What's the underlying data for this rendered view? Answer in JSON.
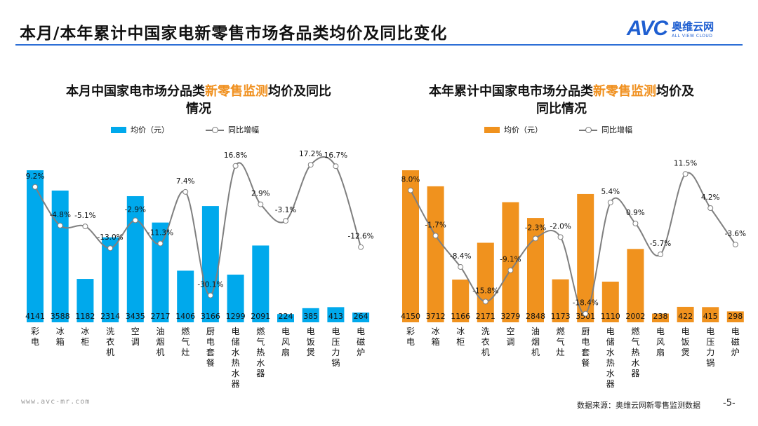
{
  "header": {
    "title": "本月/本年累计中国家电新零售市场各品类均价及同比变化"
  },
  "logo": {
    "mark": "AVC",
    "cn": "奥维云网",
    "en": "ALL VIEW CLOUD"
  },
  "footer": {
    "url": "www.avc-mr.com",
    "source": "数据来源：奥维云网新零售监测数据",
    "page": "-5-"
  },
  "colors": {
    "bar_left": "#00a9ec",
    "bar_right": "#f0921e",
    "line": "#7f7f7f",
    "highlight": "#f0901e"
  },
  "chart_data": [
    {
      "type": "bar+line",
      "title_parts": {
        "prefix": "本月中国家电市场分品类",
        "highlight": "新零售监测",
        "suffix": "均价及同比情况"
      },
      "categories": [
        "彩电",
        "冰箱",
        "冰柜",
        "洗衣机",
        "空调",
        "油烟机",
        "燃气灶",
        "厨电套餐",
        "电储水热水器",
        "燃气热水器",
        "电风扇",
        "电饭煲",
        "电压力锅",
        "电磁炉"
      ],
      "series": [
        {
          "name": "均价（元）",
          "type": "bar",
          "values": [
            4141,
            3588,
            1182,
            2314,
            3435,
            2717,
            1406,
            3166,
            1299,
            2091,
            224,
            385,
            413,
            264
          ]
        },
        {
          "name": "同比增幅",
          "type": "line",
          "unit": "%",
          "values": [
            9.2,
            -4.8,
            -5.1,
            -13.0,
            -2.9,
            -11.3,
            7.4,
            -30.1,
            16.8,
            2.9,
            -3.1,
            17.2,
            16.7,
            -12.6
          ]
        }
      ],
      "legend": "top",
      "grid": false
    },
    {
      "type": "bar+line",
      "title_parts": {
        "prefix": "本年累计中国家电市场分品类",
        "highlight": "新零售监测",
        "suffix": "均价及同比情况"
      },
      "categories": [
        "彩电",
        "冰箱",
        "冰柜",
        "洗衣机",
        "空调",
        "油烟机",
        "燃气灶",
        "厨电套餐",
        "电储水热水器",
        "燃气热水器",
        "电风扇",
        "电饭煲",
        "电压力锅",
        "电磁炉"
      ],
      "series": [
        {
          "name": "均价（元）",
          "type": "bar",
          "values": [
            4150,
            3712,
            1166,
            2171,
            3279,
            2848,
            1173,
            3501,
            1110,
            2002,
            238,
            422,
            415,
            298
          ]
        },
        {
          "name": "同比增幅",
          "type": "line",
          "unit": "%",
          "values": [
            8.0,
            -1.7,
            -8.4,
            -15.8,
            -9.1,
            -2.3,
            -2.0,
            -18.4,
            5.4,
            0.9,
            -5.7,
            11.5,
            4.2,
            -3.6
          ]
        }
      ],
      "legend": "top",
      "grid": false
    }
  ]
}
